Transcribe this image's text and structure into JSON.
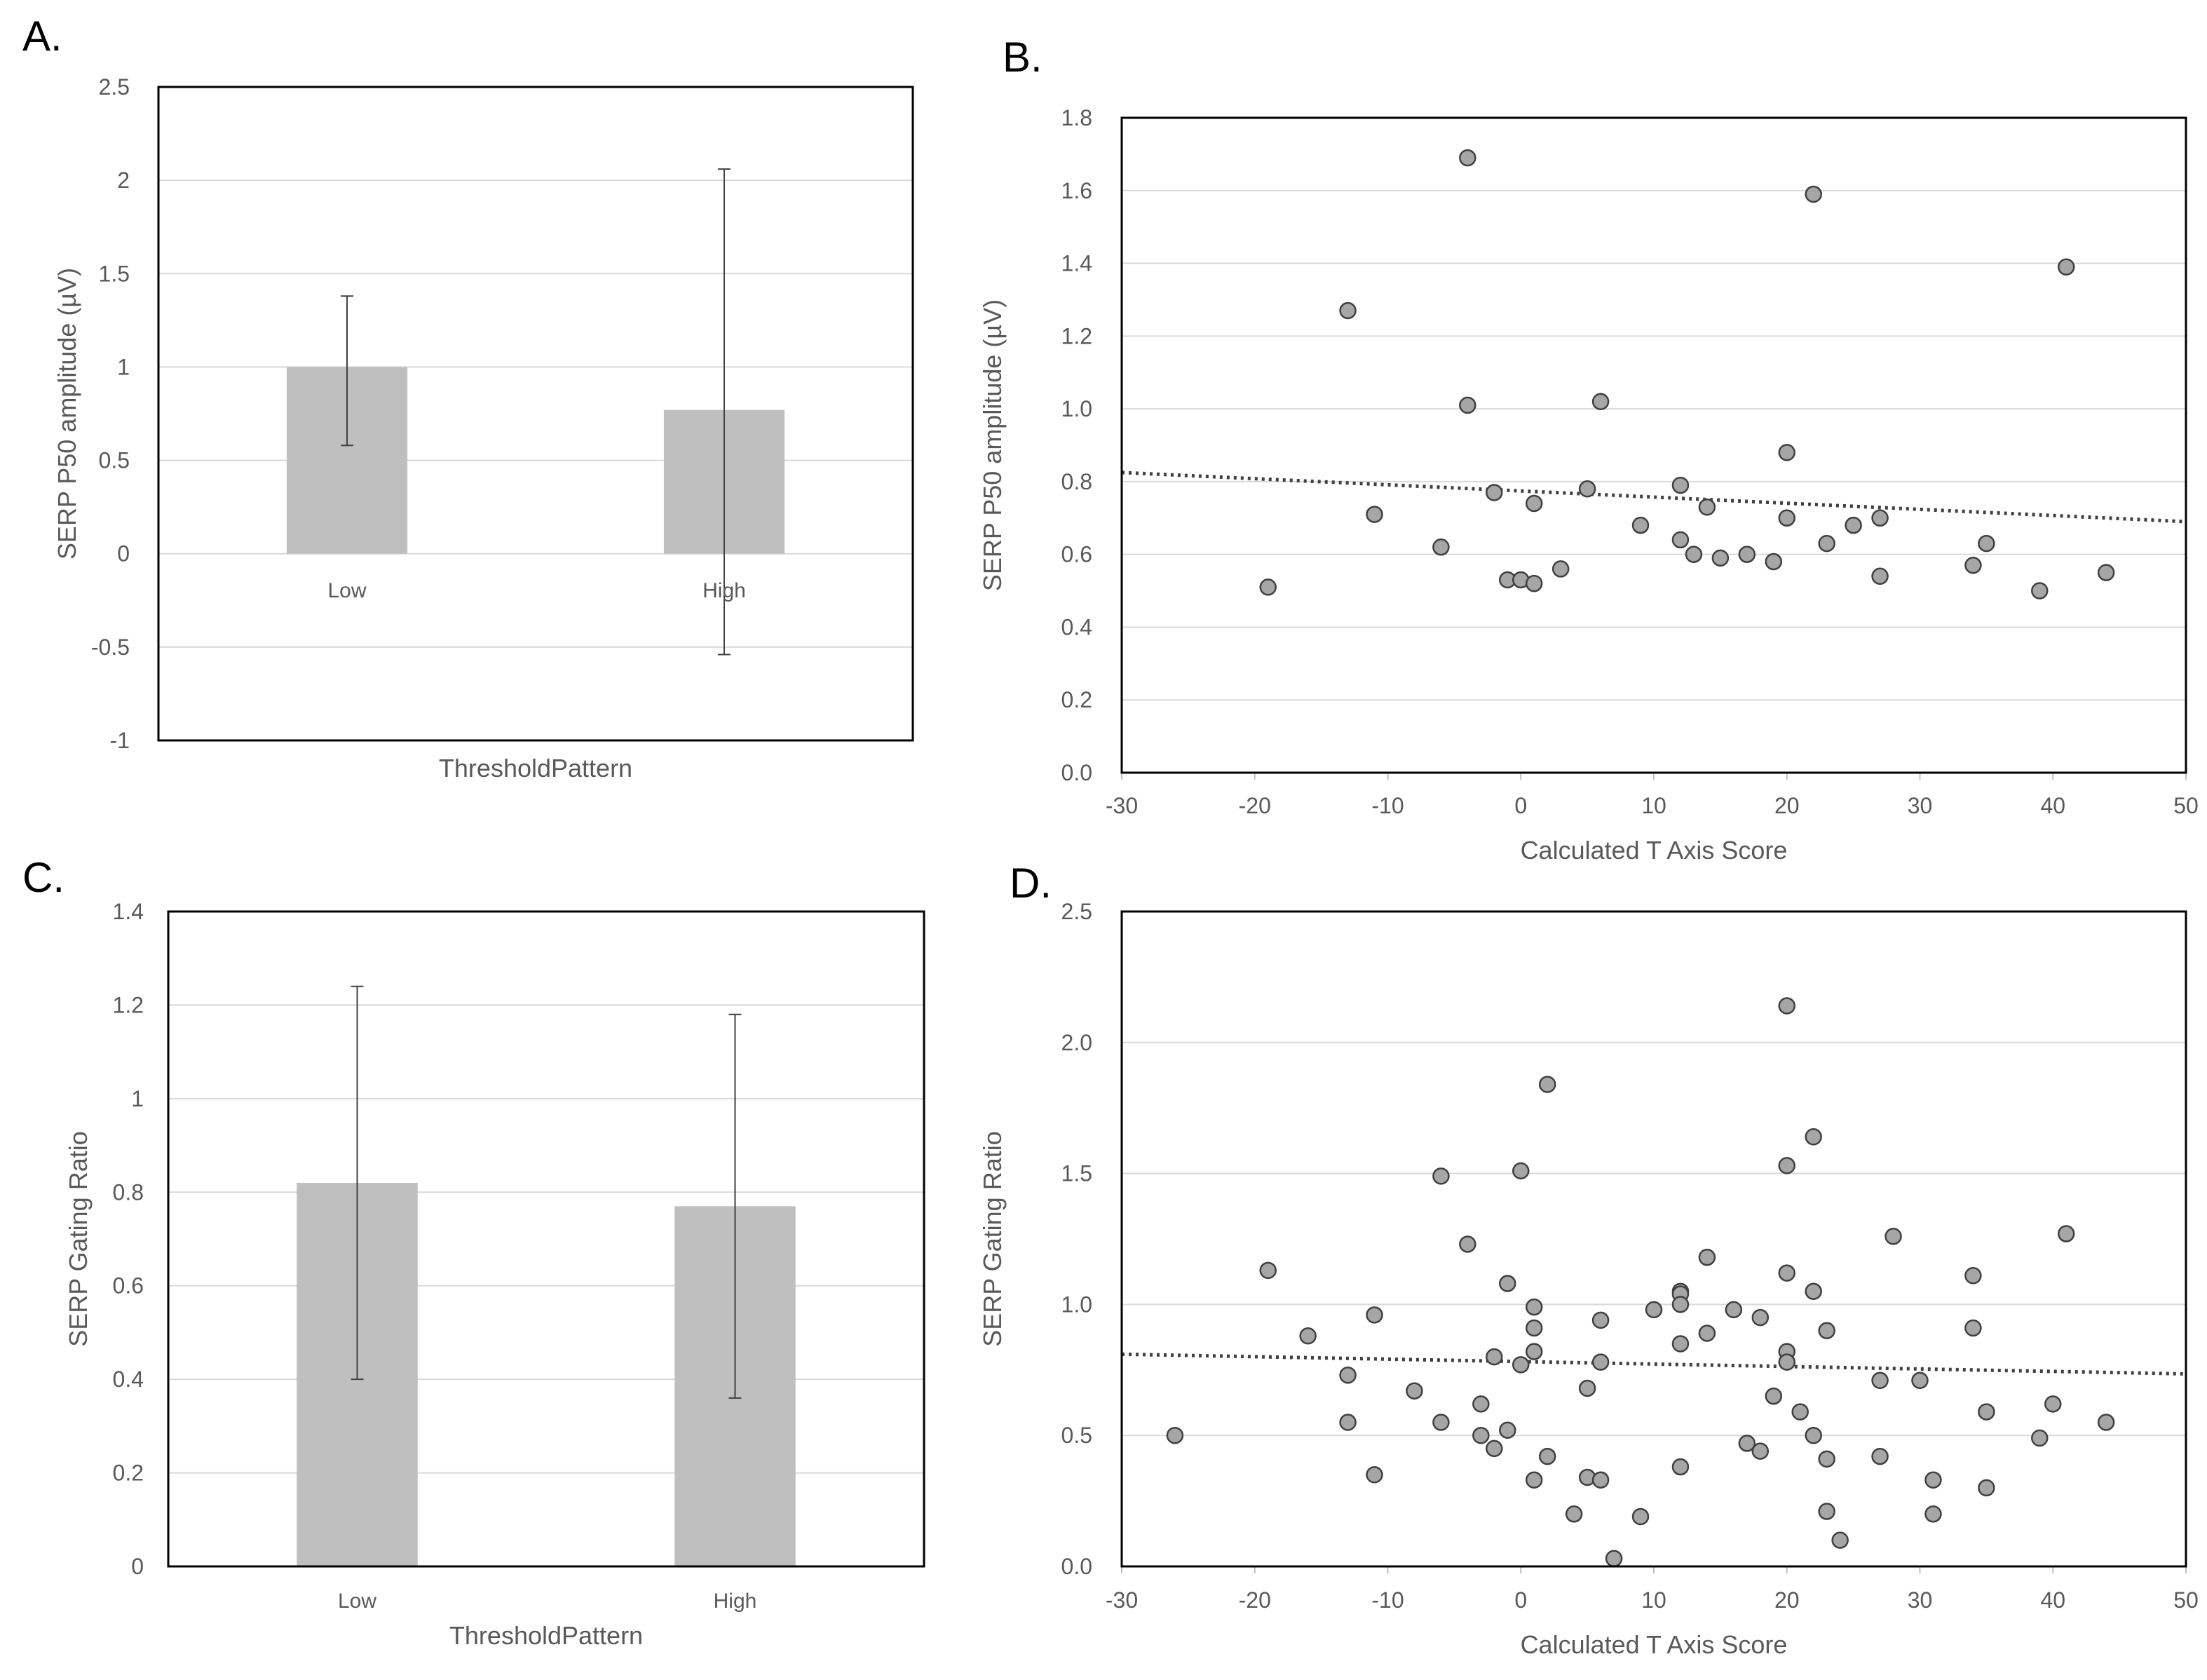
{
  "figure": {
    "colors": {
      "bar": "#bfbfbf",
      "grid": "#d9d9d9",
      "marker_fill": "#a6a6a6",
      "marker_edge": "#404040",
      "trend": "#404040",
      "text": "#595959"
    }
  },
  "chart_data": [
    {
      "panel": "A.",
      "type": "bar",
      "title": "",
      "xlabel": "ThresholdPattern",
      "ylabel": "SERP  P50 amplitude (µV)",
      "categories": [
        "Low",
        "High"
      ],
      "values": [
        1.0,
        0.77
      ],
      "error_low": [
        0.58,
        -0.54
      ],
      "error_high": [
        1.38,
        2.06
      ],
      "ylim": [
        -1,
        2.5
      ],
      "yticks": [
        2.5,
        2,
        1.5,
        1,
        0.5,
        0,
        -0.5,
        -1
      ],
      "ytick_labels": [
        "2.5",
        "2",
        "1.5",
        "1",
        "0.5",
        "0",
        "-0.5",
        "-1"
      ],
      "grid": true
    },
    {
      "panel": "B.",
      "type": "scatter",
      "title": "",
      "xlabel": "Calculated T Axis Score",
      "ylabel": "SERP P50 amplitude (µV)",
      "xlim": [
        -30,
        50
      ],
      "ylim": [
        0,
        1.8
      ],
      "xticks": [
        -30,
        -20,
        -10,
        0,
        10,
        20,
        30,
        40,
        50
      ],
      "xtick_labels": [
        "-30",
        "-20",
        "-10",
        "0",
        "10",
        "20",
        "30",
        "40",
        "50"
      ],
      "yticks": [
        1.8,
        1.6,
        1.4,
        1.2,
        1.0,
        0.8,
        0.6,
        0.4,
        0.2,
        0.0
      ],
      "ytick_labels": [
        "1.8",
        "1.6",
        "1.4",
        "1.2",
        "1.0",
        "0.8",
        "0.6",
        "0.4",
        "0.2",
        "0.0"
      ],
      "points": [
        [
          -19,
          0.51
        ],
        [
          -13,
          1.27
        ],
        [
          -11,
          0.71
        ],
        [
          -6,
          0.62
        ],
        [
          -4,
          1.69
        ],
        [
          -4,
          1.01
        ],
        [
          -2,
          0.77
        ],
        [
          -1,
          0.53
        ],
        [
          0,
          0.53
        ],
        [
          1,
          0.52
        ],
        [
          1,
          0.74
        ],
        [
          3,
          0.56
        ],
        [
          5,
          0.78
        ],
        [
          6,
          1.02
        ],
        [
          9,
          0.68
        ],
        [
          12,
          0.79
        ],
        [
          12,
          0.64
        ],
        [
          13,
          0.6
        ],
        [
          14,
          0.73
        ],
        [
          15,
          0.59
        ],
        [
          17,
          0.6
        ],
        [
          19,
          0.58
        ],
        [
          20,
          0.88
        ],
        [
          20,
          0.7
        ],
        [
          22,
          1.59
        ],
        [
          23,
          0.63
        ],
        [
          25,
          0.68
        ],
        [
          27,
          0.7
        ],
        [
          27,
          0.54
        ],
        [
          34,
          0.57
        ],
        [
          35,
          0.63
        ],
        [
          39,
          0.5
        ],
        [
          41,
          1.39
        ],
        [
          44,
          0.55
        ]
      ],
      "trendline": {
        "style": "dotted",
        "x": [
          -30,
          50
        ],
        "y": [
          0.825,
          0.69
        ]
      },
      "grid": true
    },
    {
      "panel": "C.",
      "type": "bar",
      "title": "",
      "xlabel": "ThresholdPattern",
      "ylabel": "SERP Gating Ratio",
      "categories": [
        "Low",
        "High"
      ],
      "values": [
        0.82,
        0.77
      ],
      "error_low": [
        0.4,
        0.36
      ],
      "error_high": [
        1.24,
        1.18
      ],
      "ylim": [
        0,
        1.4
      ],
      "yticks": [
        1.4,
        1.2,
        1,
        0.8,
        0.6,
        0.4,
        0.2,
        0
      ],
      "ytick_labels": [
        "1.4",
        "1.2",
        "1",
        "0.8",
        "0.6",
        "0.4",
        "0.2",
        "0"
      ],
      "grid": true
    },
    {
      "panel": "D.",
      "type": "scatter",
      "title": "",
      "xlabel": "Calculated T Axis Score",
      "ylabel": "SERP Gating Ratio",
      "xlim": [
        -30,
        50
      ],
      "ylim": [
        0,
        2.5
      ],
      "xticks": [
        -30,
        -20,
        -10,
        0,
        10,
        20,
        30,
        40,
        50
      ],
      "xtick_labels": [
        "-30",
        "-20",
        "-10",
        "0",
        "10",
        "20",
        "30",
        "40",
        "50"
      ],
      "yticks": [
        2.5,
        2.0,
        1.5,
        1.0,
        0.5,
        0.0
      ],
      "ytick_labels": [
        "2.5",
        "2.0",
        "1.5",
        "1.0",
        "0.5",
        "0.0"
      ],
      "points": [
        [
          -26,
          0.5
        ],
        [
          -19,
          1.13
        ],
        [
          -16,
          0.88
        ],
        [
          -13,
          0.73
        ],
        [
          -13,
          0.55
        ],
        [
          -11,
          0.96
        ],
        [
          -11,
          0.35
        ],
        [
          -8,
          0.67
        ],
        [
          -6,
          1.49
        ],
        [
          -6,
          0.55
        ],
        [
          -4,
          1.23
        ],
        [
          -3,
          0.62
        ],
        [
          -3,
          0.5
        ],
        [
          -2,
          0.8
        ],
        [
          -2,
          0.45
        ],
        [
          -1,
          1.08
        ],
        [
          -1,
          0.52
        ],
        [
          0,
          1.51
        ],
        [
          0,
          0.77
        ],
        [
          1,
          0.99
        ],
        [
          1,
          0.91
        ],
        [
          1,
          0.82
        ],
        [
          1,
          0.33
        ],
        [
          2,
          1.84
        ],
        [
          2,
          0.42
        ],
        [
          4,
          0.2
        ],
        [
          5,
          0.68
        ],
        [
          5,
          0.34
        ],
        [
          6,
          0.94
        ],
        [
          6,
          0.78
        ],
        [
          6,
          0.33
        ],
        [
          7,
          0.03
        ],
        [
          9,
          0.19
        ],
        [
          10,
          0.98
        ],
        [
          12,
          1.05
        ],
        [
          12,
          1.04
        ],
        [
          12,
          1.0
        ],
        [
          12,
          0.85
        ],
        [
          12,
          0.38
        ],
        [
          14,
          1.18
        ],
        [
          14,
          0.89
        ],
        [
          16,
          0.98
        ],
        [
          17,
          0.47
        ],
        [
          18,
          0.95
        ],
        [
          18,
          0.44
        ],
        [
          19,
          0.65
        ],
        [
          20,
          2.14
        ],
        [
          20,
          1.53
        ],
        [
          20,
          1.12
        ],
        [
          20,
          0.82
        ],
        [
          20,
          0.78
        ],
        [
          21,
          0.59
        ],
        [
          22,
          1.64
        ],
        [
          22,
          1.05
        ],
        [
          22,
          0.5
        ],
        [
          23,
          0.9
        ],
        [
          23,
          0.41
        ],
        [
          23,
          0.21
        ],
        [
          24,
          0.1
        ],
        [
          27,
          0.71
        ],
        [
          27,
          0.42
        ],
        [
          28,
          1.26
        ],
        [
          30,
          0.71
        ],
        [
          31,
          0.33
        ],
        [
          31,
          0.2
        ],
        [
          34,
          1.11
        ],
        [
          34,
          0.91
        ],
        [
          35,
          0.59
        ],
        [
          35,
          0.3
        ],
        [
          39,
          0.49
        ],
        [
          40,
          0.62
        ],
        [
          41,
          1.27
        ],
        [
          44,
          0.55
        ]
      ],
      "trendline": {
        "style": "dotted",
        "x": [
          -30,
          50
        ],
        "y": [
          0.81,
          0.735
        ]
      },
      "grid": true
    }
  ]
}
